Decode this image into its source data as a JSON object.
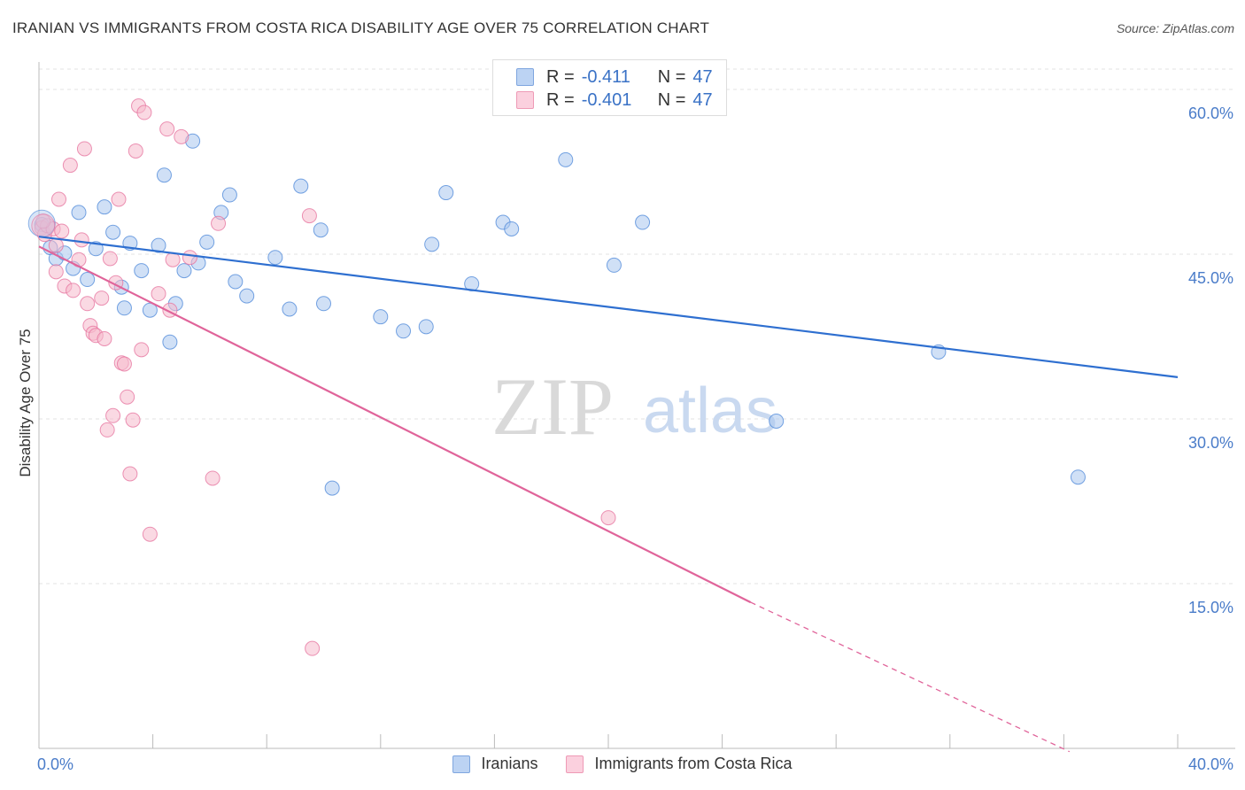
{
  "title": "IRANIAN VS IMMIGRANTS FROM COSTA RICA DISABILITY AGE OVER 75 CORRELATION CHART",
  "source": "Source: ZipAtlas.com",
  "watermark": {
    "zip": "ZIP",
    "atlas": "atlas"
  },
  "legend": {
    "rows": [
      {
        "r_label": "R =",
        "r_value": "-0.411",
        "n_label": "N =",
        "n_value": "47",
        "color": "#a9c6ee"
      },
      {
        "r_label": "R =",
        "r_value": "-0.401",
        "n_label": "N =",
        "n_value": "47",
        "color": "#f6b9cc"
      }
    ]
  },
  "bottom_legend": [
    {
      "label": "Iranians",
      "color": "#a9c6ee"
    },
    {
      "label": "Immigrants from Costa Rica",
      "color": "#f6b9cc"
    }
  ],
  "chart_data": {
    "type": "scatter",
    "title": "IRANIAN VS IMMIGRANTS FROM COSTA RICA DISABILITY AGE OVER 75 CORRELATION CHART",
    "xlabel": "",
    "ylabel": "Disability Age Over 75",
    "xlim": [
      0,
      40
    ],
    "ylim": [
      0,
      62.5
    ],
    "x_tick_labels": [
      "0.0%",
      "40.0%"
    ],
    "y_ticks": [
      15,
      30,
      45,
      60
    ],
    "y_tick_labels": [
      "15.0%",
      "30.0%",
      "45.0%",
      "60.0%"
    ],
    "grid": true,
    "series": [
      {
        "name": "Iranians",
        "color": "#4a86d8",
        "fill": "#a9c6ee",
        "trend": {
          "x0": 0,
          "y0": 46.6,
          "x1": 40,
          "y1": 33.8,
          "color": "#2e6fd0"
        },
        "points": [
          [
            0.1,
            47.7
          ],
          [
            0.4,
            45.6
          ],
          [
            0.6,
            44.6
          ],
          [
            0.9,
            45.1
          ],
          [
            1.2,
            43.7
          ],
          [
            1.4,
            48.8
          ],
          [
            1.7,
            42.7
          ],
          [
            2.0,
            45.5
          ],
          [
            2.3,
            49.3
          ],
          [
            2.6,
            47.0
          ],
          [
            2.9,
            42.0
          ],
          [
            3.0,
            40.1
          ],
          [
            3.2,
            46.0
          ],
          [
            3.6,
            43.5
          ],
          [
            3.9,
            39.9
          ],
          [
            4.2,
            45.8
          ],
          [
            4.4,
            52.2
          ],
          [
            4.6,
            37.0
          ],
          [
            4.8,
            40.5
          ],
          [
            5.1,
            43.5
          ],
          [
            5.4,
            55.3
          ],
          [
            5.6,
            44.2
          ],
          [
            5.9,
            46.1
          ],
          [
            6.4,
            48.8
          ],
          [
            6.7,
            50.4
          ],
          [
            6.9,
            42.5
          ],
          [
            7.3,
            41.2
          ],
          [
            8.3,
            44.7
          ],
          [
            8.8,
            40.0
          ],
          [
            9.2,
            51.2
          ],
          [
            9.9,
            47.2
          ],
          [
            10.0,
            40.5
          ],
          [
            10.3,
            23.7
          ],
          [
            12.0,
            39.3
          ],
          [
            12.8,
            38.0
          ],
          [
            13.6,
            38.4
          ],
          [
            13.8,
            45.9
          ],
          [
            14.3,
            50.6
          ],
          [
            15.2,
            42.3
          ],
          [
            16.3,
            47.9
          ],
          [
            16.6,
            47.3
          ],
          [
            18.5,
            53.6
          ],
          [
            20.2,
            44.0
          ],
          [
            21.2,
            47.9
          ],
          [
            25.9,
            29.8
          ],
          [
            31.6,
            36.1
          ],
          [
            36.5,
            24.7
          ]
        ]
      },
      {
        "name": "Immigrants from Costa Rica",
        "color": "#e6709c",
        "fill": "#f6b9cc",
        "trend": {
          "x0": 0,
          "y0": 45.7,
          "x1": 25.0,
          "y1": 13.3,
          "dash_to_x": 36.2,
          "dash_to_y": -0.3,
          "color": "#e0649a"
        },
        "points": [
          [
            0.1,
            47.4
          ],
          [
            0.2,
            46.8
          ],
          [
            0.3,
            47.6
          ],
          [
            0.5,
            47.3
          ],
          [
            0.6,
            45.8
          ],
          [
            0.6,
            43.4
          ],
          [
            0.7,
            50.0
          ],
          [
            0.8,
            47.1
          ],
          [
            0.9,
            42.1
          ],
          [
            1.1,
            53.1
          ],
          [
            1.2,
            41.7
          ],
          [
            1.4,
            44.5
          ],
          [
            1.5,
            46.3
          ],
          [
            1.6,
            54.6
          ],
          [
            1.7,
            40.5
          ],
          [
            1.8,
            38.5
          ],
          [
            1.9,
            37.8
          ],
          [
            2.0,
            37.6
          ],
          [
            2.2,
            41.0
          ],
          [
            2.3,
            37.3
          ],
          [
            2.4,
            29.0
          ],
          [
            2.5,
            44.6
          ],
          [
            2.6,
            30.3
          ],
          [
            2.7,
            42.4
          ],
          [
            2.8,
            50.0
          ],
          [
            2.9,
            35.1
          ],
          [
            3.0,
            35.0
          ],
          [
            3.1,
            32.0
          ],
          [
            3.2,
            25.0
          ],
          [
            3.3,
            29.9
          ],
          [
            3.4,
            54.4
          ],
          [
            3.5,
            58.5
          ],
          [
            3.6,
            36.3
          ],
          [
            3.7,
            57.9
          ],
          [
            3.9,
            19.5
          ],
          [
            4.2,
            41.4
          ],
          [
            4.5,
            56.4
          ],
          [
            4.6,
            39.9
          ],
          [
            4.7,
            44.5
          ],
          [
            5.0,
            55.7
          ],
          [
            5.3,
            44.7
          ],
          [
            6.1,
            24.6
          ],
          [
            6.3,
            47.8
          ],
          [
            9.5,
            48.5
          ],
          [
            9.6,
            9.1
          ],
          [
            20.0,
            21.0
          ],
          [
            0.15,
            48.0
          ]
        ]
      }
    ]
  }
}
